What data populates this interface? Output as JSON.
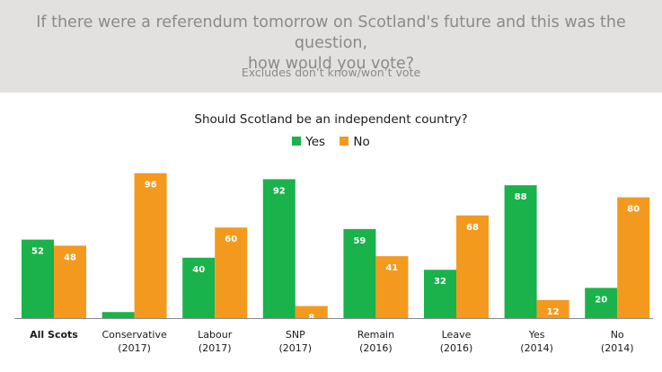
{
  "header": {
    "title_line1": "If there were a referendum tomorrow on Scotland's future and this was the question,",
    "title_line2": "how would you vote?",
    "subtitle": "Excludes don’t know/won’t vote"
  },
  "colors": {
    "yes": "#1ab24b",
    "no": "#f39a1e",
    "baseline": "#8a8a8a"
  },
  "chart_data": {
    "type": "bar",
    "title": "Should Scotland be an independent country?",
    "categories": [
      [
        "All Scots"
      ],
      [
        "Conservative",
        "(2017)"
      ],
      [
        "Labour",
        "(2017)"
      ],
      [
        "SNP",
        "(2017)"
      ],
      [
        "Remain",
        "(2016)"
      ],
      [
        "Leave",
        "(2016)"
      ],
      [
        "Yes",
        "(2014)"
      ],
      [
        "No",
        "(2014)"
      ]
    ],
    "series": [
      {
        "name": "Yes",
        "values": [
          52,
          4,
          40,
          92,
          59,
          32,
          88,
          20
        ]
      },
      {
        "name": "No",
        "values": [
          48,
          96,
          60,
          8,
          41,
          68,
          12,
          80
        ]
      }
    ],
    "ylim": [
      0,
      100
    ],
    "grid": false,
    "legend": "top-center"
  }
}
